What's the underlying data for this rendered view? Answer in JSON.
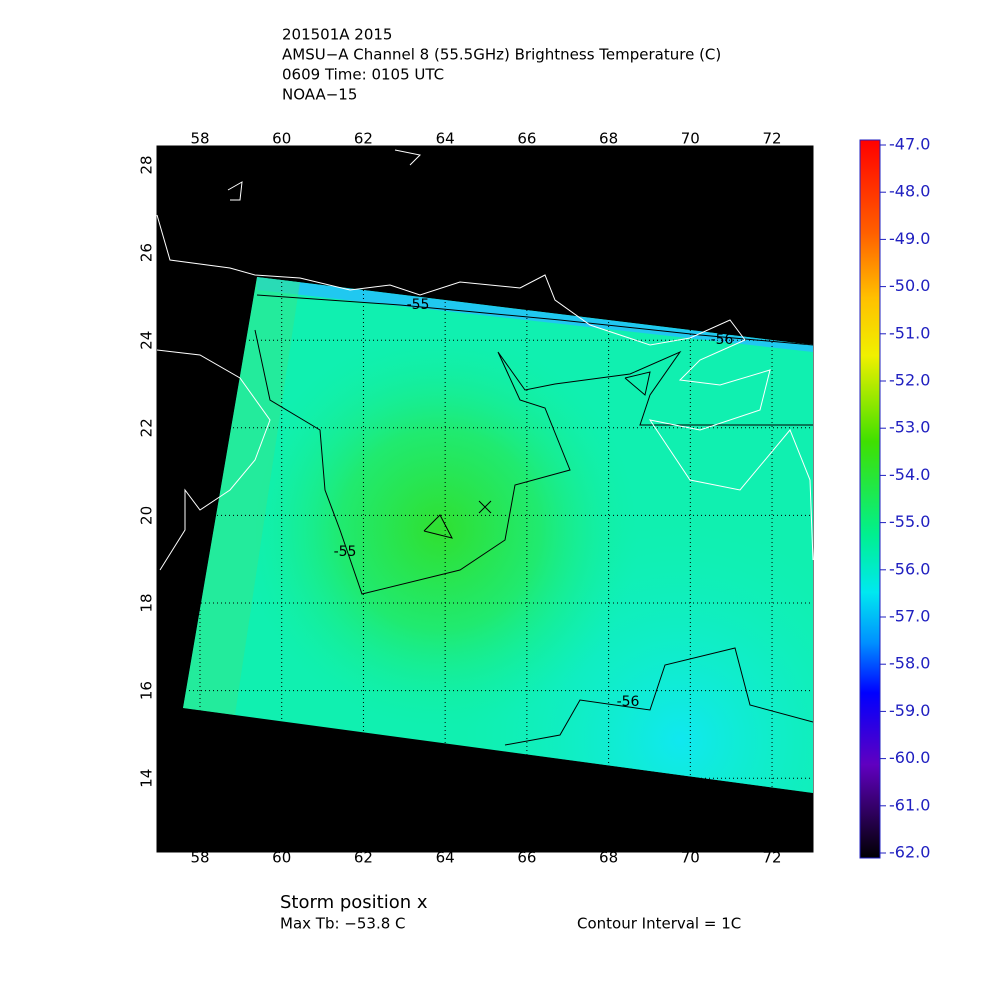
{
  "header": {
    "lines": [
      "201501A 2015",
      "AMSU−A Channel 8 (55.5GHz) Brightness Temperature (C)",
      "0609 Time: 0105 UTC",
      "NOAA−15"
    ]
  },
  "map": {
    "lon_ticks": [
      58,
      60,
      62,
      64,
      66,
      68,
      70,
      72
    ],
    "lat_ticks": [
      14,
      16,
      18,
      20,
      22,
      24,
      26,
      28
    ],
    "contour_labels": [
      "-55",
      "-55",
      "-56",
      "-56"
    ]
  },
  "colorbar": {
    "labels": [
      "-47.0",
      "-48.0",
      "-49.0",
      "-50.0",
      "-51.0",
      "-52.0",
      "-53.0",
      "-54.0",
      "-55.0",
      "-56.0",
      "-57.0",
      "-58.0",
      "-59.0",
      "-60.0",
      "-61.0",
      "-62.0"
    ]
  },
  "footer": {
    "storm": "Storm position x",
    "max_tb": "Max Tb: −53.8    C",
    "interval": "Contour Interval = 1C"
  }
}
